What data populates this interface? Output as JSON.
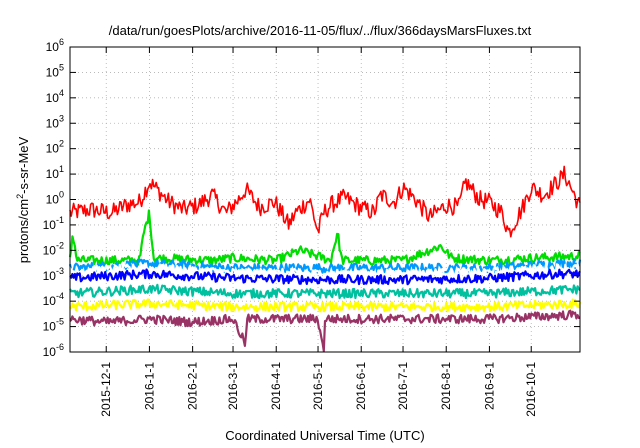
{
  "chart_data": {
    "type": "line",
    "title": "/data/run/goesPlots/archive/2016-11-05/flux/../flux/366daysMarsFluxes.txt",
    "xlabel": "Coordinated Universal Time (UTC)",
    "ylabel": {
      "prefix": "protons/cm",
      "sup": "2",
      "suffix": "-s-sr-MeV"
    },
    "y_scale": "log",
    "ylim": [
      1e-06,
      1000000.0
    ],
    "y_ticks": [
      {
        "exp": -6,
        "label": "10",
        "sup": "-6"
      },
      {
        "exp": -5,
        "label": "10",
        "sup": "-5"
      },
      {
        "exp": -4,
        "label": "10",
        "sup": "-4"
      },
      {
        "exp": -3,
        "label": "10",
        "sup": "-3"
      },
      {
        "exp": -2,
        "label": "10",
        "sup": "-2"
      },
      {
        "exp": -1,
        "label": "10",
        "sup": "-1"
      },
      {
        "exp": 0,
        "label": "10",
        "sup": "0"
      },
      {
        "exp": 1,
        "label": "10",
        "sup": "1"
      },
      {
        "exp": 2,
        "label": "10",
        "sup": "2"
      },
      {
        "exp": 3,
        "label": "10",
        "sup": "3"
      },
      {
        "exp": 4,
        "label": "10",
        "sup": "4"
      },
      {
        "exp": 5,
        "label": "10",
        "sup": "5"
      },
      {
        "exp": 6,
        "label": "10",
        "sup": "6"
      }
    ],
    "xlim": [
      "2015-11-05",
      "2016-11-05"
    ],
    "x_ticks": [
      "2015-12-1",
      "2016-1-1",
      "2016-2-1",
      "2016-3-1",
      "2016-4-1",
      "2016-5-1",
      "2016-6-1",
      "2016-7-1",
      "2016-8-1",
      "2016-9-1",
      "2016-10-1"
    ],
    "grid": true,
    "series": [
      {
        "color": "#ff0000",
        "values": [
          [
            "2015-11-05",
            0.3
          ],
          [
            "2015-11-20",
            0.4
          ],
          [
            "2015-12-05",
            0.3
          ],
          [
            "2015-12-15",
            0.6
          ],
          [
            "2015-12-25",
            0.8
          ],
          [
            "2016-01-01",
            5
          ],
          [
            "2016-01-05",
            3
          ],
          [
            "2016-01-15",
            0.8
          ],
          [
            "2016-01-25",
            0.4
          ],
          [
            "2016-02-05",
            0.6
          ],
          [
            "2016-02-15",
            1.5
          ],
          [
            "2016-02-25",
            0.3
          ],
          [
            "2016-03-05",
            1.0
          ],
          [
            "2016-03-10",
            2.5
          ],
          [
            "2016-03-20",
            0.5
          ],
          [
            "2016-03-31",
            0.8
          ],
          [
            "2016-04-10",
            0.1
          ],
          [
            "2016-04-15",
            0.3
          ],
          [
            "2016-04-25",
            1.0
          ],
          [
            "2016-05-01",
            0.05
          ],
          [
            "2016-05-05",
            0.3
          ],
          [
            "2016-05-10",
            0.6
          ],
          [
            "2016-05-20",
            1.2
          ],
          [
            "2016-05-31",
            0.5
          ],
          [
            "2016-06-10",
            0.3
          ],
          [
            "2016-06-15",
            1.5
          ],
          [
            "2016-06-25",
            0.8
          ],
          [
            "2016-07-01",
            3
          ],
          [
            "2016-07-10",
            1.0
          ],
          [
            "2016-07-20",
            0.2
          ],
          [
            "2016-08-01",
            0.6
          ],
          [
            "2016-08-10",
            0.5
          ],
          [
            "2016-08-15",
            5
          ],
          [
            "2016-08-25",
            1.0
          ],
          [
            "2016-09-01",
            0.8
          ],
          [
            "2016-09-10",
            0.3
          ],
          [
            "2016-09-15",
            0.05
          ],
          [
            "2016-09-25",
            0.5
          ],
          [
            "2016-10-01",
            3
          ],
          [
            "2016-10-10",
            1.5
          ],
          [
            "2016-10-20",
            5
          ],
          [
            "2016-10-25",
            10
          ],
          [
            "2016-11-05",
            0.5
          ]
        ]
      },
      {
        "color": "#00dd00",
        "values": [
          [
            "2015-11-05",
            0.004
          ],
          [
            "2015-11-07",
            0.05
          ],
          [
            "2015-11-10",
            0.004
          ],
          [
            "2015-12-25",
            0.004
          ],
          [
            "2015-12-28",
            0.05
          ],
          [
            "2016-01-01",
            0.3
          ],
          [
            "2016-01-04",
            0.005
          ],
          [
            "2016-02-15",
            0.004
          ],
          [
            "2016-03-01",
            0.005
          ],
          [
            "2016-04-01",
            0.004
          ],
          [
            "2016-04-18",
            0.01
          ],
          [
            "2016-05-10",
            0.004
          ],
          [
            "2016-05-15",
            0.05
          ],
          [
            "2016-05-18",
            0.004
          ],
          [
            "2016-07-01",
            0.004
          ],
          [
            "2016-07-28",
            0.015
          ],
          [
            "2016-08-05",
            0.005
          ],
          [
            "2016-09-01",
            0.004
          ],
          [
            "2016-10-01",
            0.005
          ],
          [
            "2016-11-05",
            0.006
          ]
        ]
      },
      {
        "color": "#0099ff",
        "values": [
          [
            "2015-11-05",
            0.002
          ],
          [
            "2016-01-01",
            0.003
          ],
          [
            "2016-03-01",
            0.002
          ],
          [
            "2016-05-01",
            0.002
          ],
          [
            "2016-07-01",
            0.002
          ],
          [
            "2016-09-01",
            0.002
          ],
          [
            "2016-10-20",
            0.003
          ],
          [
            "2016-11-05",
            0.003
          ]
        ]
      },
      {
        "color": "#ffffff",
        "values": [
          [
            "2015-11-05",
            0.0015
          ],
          [
            "2016-01-01",
            0.002
          ],
          [
            "2016-03-01",
            0.0013
          ],
          [
            "2016-05-01",
            0.0012
          ],
          [
            "2016-07-01",
            0.0012
          ],
          [
            "2016-09-01",
            0.0014
          ],
          [
            "2016-10-20",
            0.002
          ],
          [
            "2016-11-05",
            0.002
          ]
        ]
      },
      {
        "color": "#0000ff",
        "values": [
          [
            "2015-11-05",
            0.0008
          ],
          [
            "2016-01-01",
            0.0012
          ],
          [
            "2016-03-01",
            0.0008
          ],
          [
            "2016-05-01",
            0.0007
          ],
          [
            "2016-07-01",
            0.0007
          ],
          [
            "2016-09-01",
            0.0008
          ],
          [
            "2016-10-20",
            0.0012
          ],
          [
            "2016-11-05",
            0.0012
          ]
        ]
      },
      {
        "color": "#00c0a0",
        "values": [
          [
            "2015-11-05",
            0.0002
          ],
          [
            "2016-01-01",
            0.0003
          ],
          [
            "2016-03-01",
            0.0002
          ],
          [
            "2016-05-01",
            0.0002
          ],
          [
            "2016-07-01",
            0.0002
          ],
          [
            "2016-09-01",
            0.0002
          ],
          [
            "2016-11-05",
            0.0003
          ]
        ]
      },
      {
        "color": "#ffff00",
        "values": [
          [
            "2015-11-05",
            6e-05
          ],
          [
            "2016-01-01",
            8e-05
          ],
          [
            "2016-03-01",
            6e-05
          ],
          [
            "2016-05-01",
            6e-05
          ],
          [
            "2016-07-01",
            6e-05
          ],
          [
            "2016-09-01",
            6e-05
          ],
          [
            "2016-11-05",
            8e-05
          ]
        ]
      },
      {
        "color": "#993366",
        "values": [
          [
            "2015-11-05",
            2e-05
          ],
          [
            "2015-12-01",
            1.5e-05
          ],
          [
            "2016-01-01",
            2e-05
          ],
          [
            "2016-02-01",
            1.5e-05
          ],
          [
            "2016-03-01",
            2e-05
          ],
          [
            "2016-03-10",
            2e-06
          ],
          [
            "2016-03-11",
            2e-05
          ],
          [
            "2016-04-01",
            2e-05
          ],
          [
            "2016-05-01",
            2e-05
          ],
          [
            "2016-05-05",
            1e-06
          ],
          [
            "2016-05-06",
            2e-05
          ],
          [
            "2016-07-01",
            2e-05
          ],
          [
            "2016-09-01",
            2e-05
          ],
          [
            "2016-11-05",
            3e-05
          ]
        ]
      }
    ]
  }
}
